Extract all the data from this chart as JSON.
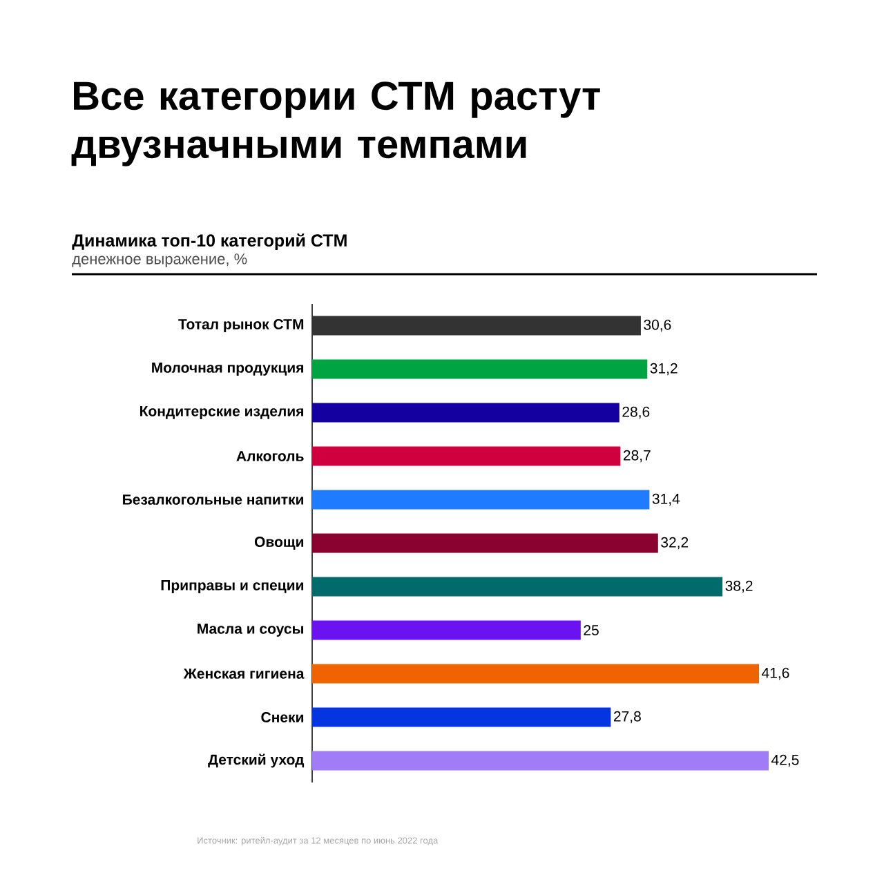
{
  "chart_data": {
    "type": "bar",
    "orientation": "horizontal",
    "title": "Все категории СТМ растут двузначными темпами",
    "subtitle": "Динамика топ-10 категорий СТМ",
    "annotations": [
      "денежное выражение, %",
      "Источник: ритейл-аудит за 12 месяцев по июнь 2022 года"
    ],
    "categories": [
      "Тотал рынок СТМ",
      "Молочная продукция",
      "Кондитерские изделия",
      "Алкоголь",
      "Безалкогольные напитки",
      "Овощи",
      "Приправы и специи",
      "Масла и соусы",
      "Женская гигиена",
      "Снеки",
      "Детский уход"
    ],
    "values": [
      30.6,
      31.2,
      28.6,
      28.7,
      31.4,
      32.2,
      38.2,
      25,
      41.6,
      27.8,
      42.5
    ],
    "value_labels": [
      "30,6",
      "31,2",
      "28,6",
      "28,7",
      "31,4",
      "32,2",
      "38,2",
      "25",
      "41,6",
      "27,8",
      "42,5"
    ],
    "colors": [
      "#333333",
      "#00a443",
      "#1400a0",
      "#d0003f",
      "#1f7bff",
      "#8a0330",
      "#006b6b",
      "#6a12f0",
      "#f06400",
      "#0535e0",
      "#a07cf7"
    ]
  }
}
